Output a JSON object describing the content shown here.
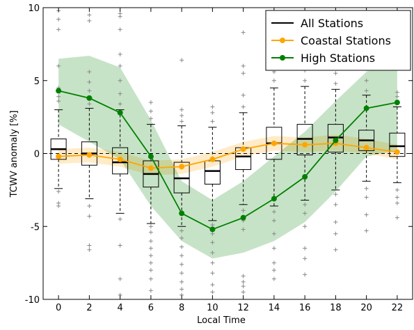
{
  "chart_data": {
    "type": "boxplot",
    "xlabel": "Local Time",
    "ylabel": "TCWV anomaly [%]",
    "xlim": [
      -1,
      23
    ],
    "ylim": [
      -10,
      10
    ],
    "x_ticks": [
      0,
      2,
      4,
      6,
      8,
      10,
      12,
      14,
      16,
      18,
      20,
      22
    ],
    "y_ticks": [
      -10,
      -5,
      0,
      5,
      10
    ],
    "x_tick_labels": [
      "0",
      "2",
      "4",
      "6",
      "8",
      "10",
      "12",
      "14",
      "16",
      "18",
      "20",
      "22"
    ],
    "y_tick_labels": [
      "-10",
      "-5",
      "0",
      "5",
      "10"
    ],
    "zero_line": true,
    "grid": false,
    "legend": {
      "placement": "top-right",
      "entries": [
        {
          "label": "All Stations",
          "color": "#000000",
          "marker": "none"
        },
        {
          "label": "Coastal Stations",
          "color": "#ffa500",
          "marker": "circle"
        },
        {
          "label": "High Stations",
          "color": "#008000",
          "marker": "circle"
        }
      ]
    },
    "all_stations_boxes": [
      {
        "x": 0,
        "whisker_low": -2.4,
        "q1": -0.4,
        "median": 0.3,
        "q3": 1.0,
        "whisker_high": 3.0
      },
      {
        "x": 2,
        "whisker_low": -3.1,
        "q1": -0.8,
        "median": 0.0,
        "q3": 0.8,
        "whisker_high": 3.1
      },
      {
        "x": 4,
        "whisker_low": -4.1,
        "q1": -1.4,
        "median": -0.6,
        "q3": 0.4,
        "whisker_high": 3.0
      },
      {
        "x": 6,
        "whisker_low": -4.8,
        "q1": -2.3,
        "median": -1.4,
        "q3": -0.5,
        "whisker_high": 2.0
      },
      {
        "x": 8,
        "whisker_low": -5.0,
        "q1": -2.7,
        "median": -1.7,
        "q3": -0.6,
        "whisker_high": 1.9
      },
      {
        "x": 10,
        "whisker_low": -4.6,
        "q1": -2.1,
        "median": -1.2,
        "q3": -0.5,
        "whisker_high": 1.8
      },
      {
        "x": 12,
        "whisker_low": -3.5,
        "q1": -1.1,
        "median": -0.2,
        "q3": 0.4,
        "whisker_high": 2.8
      },
      {
        "x": 14,
        "whisker_low": -3.6,
        "q1": -0.4,
        "median": 0.7,
        "q3": 1.8,
        "whisker_high": 4.5
      },
      {
        "x": 16,
        "whisker_low": -3.2,
        "q1": -0.1,
        "median": 1.0,
        "q3": 2.0,
        "whisker_high": 4.6
      },
      {
        "x": 18,
        "whisker_low": -2.5,
        "q1": 0.1,
        "median": 1.1,
        "q3": 2.0,
        "whisker_high": 4.4
      },
      {
        "x": 20,
        "whisker_low": -1.9,
        "q1": 0.2,
        "median": 0.9,
        "q3": 1.6,
        "whisker_high": 4.0
      },
      {
        "x": 22,
        "whisker_low": -2.0,
        "q1": -0.2,
        "median": 0.5,
        "q3": 1.4,
        "whisker_high": 3.2
      }
    ],
    "outliers": [
      {
        "x": 0,
        "values": [
          -2.6,
          -3.4,
          -3.6,
          3.6,
          3.9,
          4.5,
          6.0,
          8.5,
          9.2,
          9.8
        ]
      },
      {
        "x": 2,
        "values": [
          -3.6,
          -4.3,
          -6.3,
          -6.6,
          3.4,
          3.8,
          4.3,
          4.9,
          5.6,
          9.1,
          9.5
        ]
      },
      {
        "x": 4,
        "values": [
          -4.5,
          -6.3,
          -8.6,
          -9.7,
          3.4,
          4.1,
          5.0,
          6.0,
          6.8,
          8.5,
          9.4,
          9.6
        ]
      },
      {
        "x": 6,
        "values": [
          -5.0,
          -5.4,
          -6.0,
          -6.5,
          -7.0,
          -7.5,
          -8.0,
          -8.6,
          -9.4,
          2.4,
          2.9,
          3.5
        ]
      },
      {
        "x": 8,
        "values": [
          -5.3,
          -5.8,
          -6.4,
          -7.0,
          -7.6,
          -8.2,
          -8.8,
          -9.3,
          -9.7,
          2.2,
          2.6,
          3.0,
          6.4
        ]
      },
      {
        "x": 10,
        "values": [
          -4.9,
          -5.5,
          -6.1,
          -6.8,
          -7.5,
          -8.2,
          -9.0,
          -9.5,
          2.2,
          2.8,
          3.2
        ]
      },
      {
        "x": 12,
        "values": [
          -3.9,
          -4.6,
          -5.2,
          -8.4,
          -8.8,
          -9.1,
          -9.5,
          3.2,
          4.0,
          5.5,
          6.0,
          8.3
        ]
      },
      {
        "x": 14,
        "values": [
          -4.0,
          -4.6,
          -5.5,
          -6.5,
          -7.5,
          -8.0,
          -8.6,
          5.0,
          5.6,
          6.2,
          7.0,
          8.0
        ]
      },
      {
        "x": 16,
        "values": [
          -3.5,
          -4.1,
          -5.0,
          -6.5,
          -7.2,
          -8.3,
          5.0,
          5.7,
          6.5,
          7.5,
          9.0
        ]
      },
      {
        "x": 18,
        "values": [
          -2.8,
          -3.5,
          -4.7,
          -5.5,
          -6.6,
          4.8,
          5.5,
          6.2,
          7.2,
          8.5
        ]
      },
      {
        "x": 20,
        "values": [
          -2.4,
          -3.0,
          -4.2,
          -5.3,
          4.3,
          5.0,
          5.8,
          6.7
        ]
      },
      {
        "x": 22,
        "values": [
          -2.5,
          -3.0,
          -3.4,
          -4.4,
          3.5,
          3.9,
          4.2,
          6.0
        ]
      }
    ],
    "series": [
      {
        "name": "Coastal Stations",
        "color": "#ffa500",
        "x": [
          0,
          2,
          4,
          6,
          8,
          10,
          12,
          14,
          16,
          18,
          20,
          22
        ],
        "values": [
          -0.2,
          -0.1,
          -0.4,
          -1.0,
          -0.9,
          -0.4,
          0.3,
          0.7,
          0.6,
          0.7,
          0.4,
          0.1
        ],
        "band_low": [
          -0.7,
          -0.6,
          -0.9,
          -1.5,
          -1.4,
          -0.9,
          -0.2,
          0.2,
          0.1,
          0.2,
          0.0,
          -0.4
        ],
        "band_high": [
          0.3,
          0.4,
          0.1,
          -0.5,
          -0.4,
          0.1,
          0.8,
          1.2,
          1.1,
          1.3,
          1.0,
          0.6
        ]
      },
      {
        "name": "High Stations",
        "color": "#008000",
        "x": [
          0,
          2,
          4,
          6,
          8,
          10,
          12,
          14,
          16,
          18,
          20,
          22
        ],
        "values": [
          4.3,
          3.8,
          2.8,
          -0.2,
          -4.1,
          -5.2,
          -4.4,
          -3.1,
          -1.6,
          0.9,
          3.1,
          3.5
        ],
        "band_low": [
          2.0,
          0.8,
          -0.4,
          -3.6,
          -6.0,
          -7.2,
          -6.8,
          -6.0,
          -4.7,
          -2.6,
          -0.2,
          0.2
        ],
        "band_high": [
          6.5,
          6.7,
          5.9,
          2.3,
          -1.9,
          -3.2,
          -1.9,
          -0.2,
          1.5,
          3.6,
          5.6,
          6.6
        ]
      }
    ]
  }
}
